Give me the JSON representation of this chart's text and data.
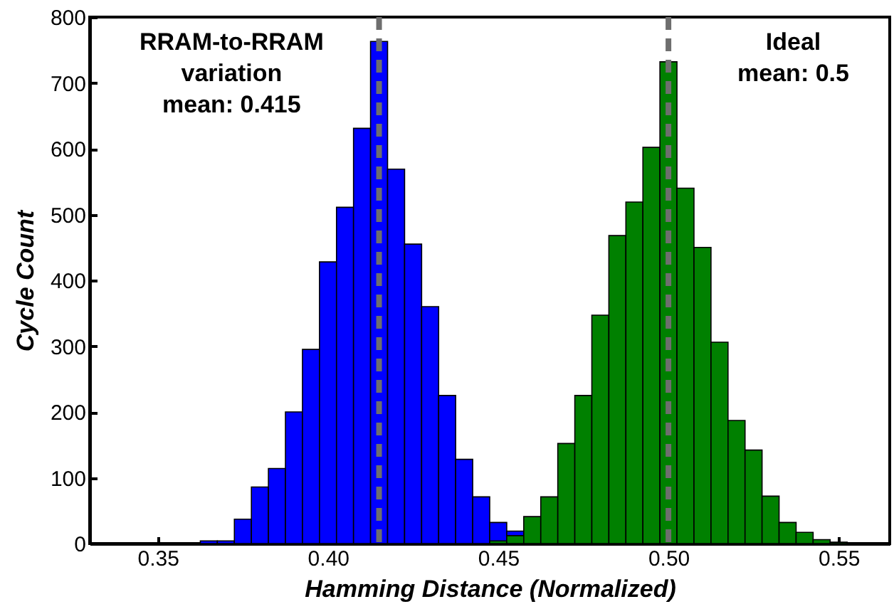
{
  "chart_data": {
    "type": "histogram",
    "xlabel": "Hamming Distance (Normalized)",
    "ylabel": "Cycle Count",
    "xlim": [
      0.33,
      0.565
    ],
    "xticks": [
      0.35,
      {
        "value": 0.4,
        "label": "0.40"
      },
      0.45,
      {
        "value": 0.5,
        "label": "0.50"
      },
      0.55
    ],
    "ylim": [
      0,
      800
    ],
    "yticks": [
      0,
      100,
      200,
      300,
      400,
      500,
      600,
      700,
      800
    ],
    "grid": false,
    "bins": [
      0.3625,
      0.3675,
      0.3725,
      0.3775,
      0.3825,
      0.3875,
      0.3925,
      0.3975,
      0.4025,
      0.4075,
      0.4125,
      0.4175,
      0.4225,
      0.4275,
      0.4325,
      0.4375,
      0.4425,
      0.4475,
      0.4525,
      0.4575,
      0.4625,
      0.4675,
      0.4725,
      0.4775,
      0.4825,
      0.4875,
      0.4925,
      0.4975,
      0.5025,
      0.5075,
      0.5125,
      0.5175,
      0.5225,
      0.5275,
      0.5325,
      0.5375,
      0.5425,
      0.5475,
      0.5525
    ],
    "series": [
      {
        "color": "#0000ff",
        "values": [
          4,
          4,
          37,
          86,
          114,
          200,
          295,
          428,
          511,
          631,
          763,
          569,
          455,
          360,
          225,
          128,
          71,
          32,
          19,
          null,
          null,
          null,
          null,
          null,
          null,
          null,
          null,
          null,
          null,
          null,
          null,
          null,
          null,
          null,
          null,
          null,
          null,
          null
        ]
      },
      {
        "color": "#008000",
        "values": [
          null,
          null,
          null,
          null,
          null,
          null,
          null,
          null,
          null,
          null,
          null,
          null,
          null,
          null,
          null,
          null,
          null,
          4,
          12,
          41,
          71,
          152,
          225,
          347,
          468,
          519,
          602,
          732,
          540,
          450,
          306,
          187,
          142,
          72,
          32,
          17,
          6,
          2
        ]
      }
    ],
    "ref_lines": [
      {
        "axis": "x",
        "value": 0.415,
        "label": "RRAM-to-RRAM\nvariation\nmean: 0.415",
        "color": "#6e6e6e",
        "line_style": "dashed"
      },
      {
        "axis": "x",
        "value": 0.5,
        "label": "Ideal\nmean: 0.5",
        "color": "#6e6e6e",
        "line_style": "dashed"
      }
    ]
  }
}
